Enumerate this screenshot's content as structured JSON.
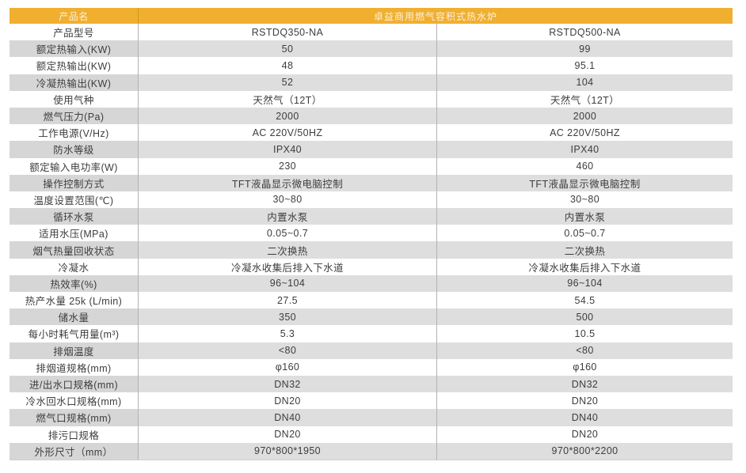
{
  "colors": {
    "accent": "#F1AF2F",
    "header_text": "#F7F2E4",
    "stripe_label": "#D6D6D6",
    "stripe_value": "#DEDEDE",
    "divider": "#B2B2B2",
    "border_light": "#CFCFCF",
    "text": "#3D3D3D"
  },
  "table": {
    "header": {
      "label": "产品名",
      "title": "卓益商用燃气容积式热水炉"
    },
    "rows": [
      {
        "label": "产品型号",
        "v1": "RSTDQ350-NA",
        "v2": "RSTDQ500-NA"
      },
      {
        "label": "额定热输入(KW)",
        "v1": "50",
        "v2": "99"
      },
      {
        "label": "额定热输出(KW)",
        "v1": "48",
        "v2": "95.1"
      },
      {
        "label": "冷凝热输出(KW)",
        "v1": "52",
        "v2": "104"
      },
      {
        "label": "使用气种",
        "v1": "天然气（12T）",
        "v2": "天然气（12T）"
      },
      {
        "label": "燃气压力(Pa)",
        "v1": "2000",
        "v2": "2000"
      },
      {
        "label": "工作电源(V/Hz)",
        "v1": "AC 220V/50HZ",
        "v2": "AC 220V/50HZ"
      },
      {
        "label": "防水等级",
        "v1": "IPX40",
        "v2": "IPX40"
      },
      {
        "label": "额定输入电功率(W)",
        "v1": "230",
        "v2": "460"
      },
      {
        "label": "操作控制方式",
        "v1": "TFT液晶显示微电脑控制",
        "v2": "TFT液晶显示微电脑控制"
      },
      {
        "label": "温度设置范围(℃)",
        "v1": "30~80",
        "v2": "30~80"
      },
      {
        "label": "循环水泵",
        "v1": "内置水泵",
        "v2": "内置水泵"
      },
      {
        "label": "适用水压(MPa)",
        "v1": "0.05~0.7",
        "v2": "0.05~0.7"
      },
      {
        "label": "烟气热量回收状态",
        "v1": "二次换热",
        "v2": "二次换热"
      },
      {
        "label": "冷凝水",
        "v1": "冷凝水收集后排入下水道",
        "v2": "冷凝水收集后排入下水道"
      },
      {
        "label": "热效率(%)",
        "v1": "96~104",
        "v2": "96~104"
      },
      {
        "label": "热产水量 25k (L/min)",
        "v1": "27.5",
        "v2": "54.5"
      },
      {
        "label": "储水量",
        "v1": "350",
        "v2": "500"
      },
      {
        "label": "每小时耗气用量(m³)",
        "v1": "5.3",
        "v2": "10.5"
      },
      {
        "label": "排烟温度",
        "v1": "<80",
        "v2": "<80"
      },
      {
        "label": "排烟道规格(mm)",
        "v1": "φ160",
        "v2": "φ160"
      },
      {
        "label": "进/出水口规格(mm)",
        "v1": "DN32",
        "v2": "DN32"
      },
      {
        "label": "冷水回水口规格(mm)",
        "v1": "DN20",
        "v2": "DN20"
      },
      {
        "label": "燃气口规格(mm)",
        "v1": "DN40",
        "v2": "DN40"
      },
      {
        "label": "排污口规格",
        "v1": "DN20",
        "v2": "DN20"
      },
      {
        "label": "外形尺寸（mm）",
        "v1": "970*800*1950",
        "v2": "970*800*2200"
      }
    ]
  }
}
